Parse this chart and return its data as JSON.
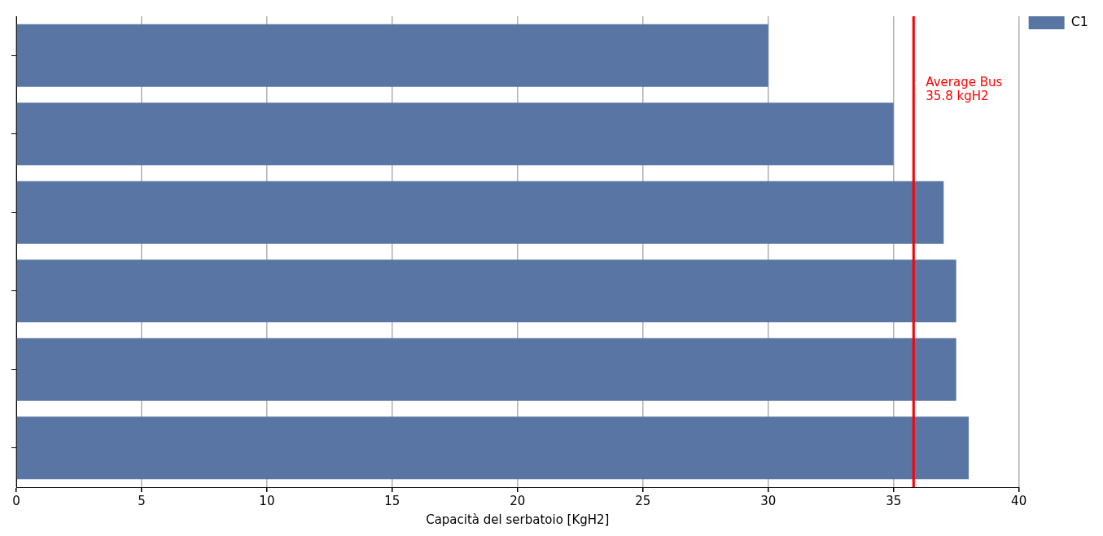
{
  "chart_data": {
    "type": "bar",
    "orientation": "horizontal",
    "xlabel": "Capacità del serbatoio [KgH2]",
    "categories": [
      null,
      null,
      null,
      null,
      null,
      null
    ],
    "series": [
      {
        "name": "C1",
        "color": "#5975a4",
        "values": [
          30,
          35,
          37,
          37.5,
          37.5,
          38
        ]
      }
    ],
    "xlim": [
      0,
      40
    ],
    "xticks": [
      0,
      5,
      10,
      15,
      20,
      25,
      30,
      35,
      40
    ],
    "grid": "x",
    "legend": "top right",
    "ref_lines": [
      {
        "axis": "x",
        "value": 35.8,
        "label": "Average Bus\n35.8 kgH2",
        "color": "#ff0000",
        "line_style": "solid"
      }
    ]
  }
}
